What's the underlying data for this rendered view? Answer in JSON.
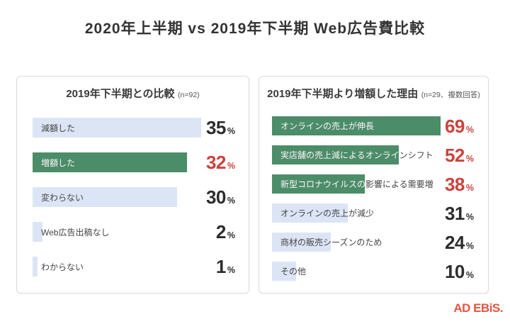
{
  "title": "2020年上半期 vs 2019年下半期 Web広告費比較",
  "logo": "AD EBiS.",
  "colors": {
    "bar_green": "#4C8D69",
    "bar_blue": "#DCE5F5",
    "percent_red": "#CD423D",
    "percent_dark": "#2D2D2D",
    "label_dark": "#444444",
    "panel_border": "#DBDBDB",
    "logo_red": "#E8543F"
  },
  "chart_data": [
    {
      "type": "bar",
      "orientation": "horizontal",
      "title": "2019年下半期との比較",
      "note": "(n=92)",
      "unit": "%",
      "categories": [
        "減額した",
        "増額した",
        "変わらない",
        "Web広告出稿なし",
        "わからない"
      ],
      "values": [
        35,
        32,
        30,
        2,
        1
      ],
      "highlight": [
        false,
        true,
        false,
        false,
        false
      ],
      "xlim": [
        0,
        35
      ],
      "grid": false,
      "legend": "none",
      "value_labels": "right-aligned"
    },
    {
      "type": "bar",
      "orientation": "horizontal",
      "title": "2019年下半期より増額した理由",
      "note": "(n=29、複数回答)",
      "unit": "%",
      "categories": [
        "オンラインの売上が伸長",
        "実店舗の売上減によるオンラインシフト",
        "新型コロナウイルスの影響による需要増",
        "オンラインの売上が減少",
        "商材の販売シーズンのため",
        "その他"
      ],
      "values": [
        69,
        52,
        38,
        31,
        24,
        10
      ],
      "highlight": [
        true,
        true,
        true,
        false,
        false,
        false
      ],
      "xlim": [
        0,
        69
      ],
      "grid": false,
      "legend": "none",
      "value_labels": "right-aligned"
    }
  ]
}
